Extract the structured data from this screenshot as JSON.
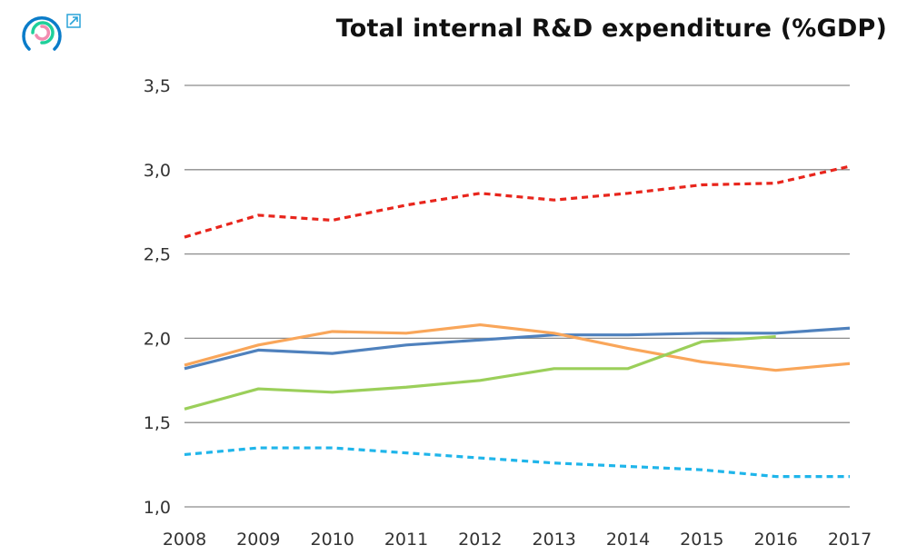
{
  "chart_data": {
    "type": "line",
    "title": "Total internal R&D expenditure (%GDP)",
    "x": [
      2008,
      2009,
      2010,
      2011,
      2012,
      2013,
      2014,
      2015,
      2016,
      2017
    ],
    "x_tick_labels": [
      "2008",
      "2009",
      "2010",
      "2011",
      "2012",
      "2013",
      "2014",
      "2015",
      "2016",
      "2017"
    ],
    "y_tick_labels": [
      "1,0",
      "1,5",
      "2,0",
      "2,5",
      "3,0",
      "3,5"
    ],
    "y_ticks": [
      1.0,
      1.5,
      2.0,
      2.5,
      3.0,
      3.5
    ],
    "ylim": [
      1.0,
      3.5
    ],
    "grid": "horizontal",
    "series": [
      {
        "color": "#e8251c",
        "dash": true,
        "values": [
          2.6,
          2.73,
          2.7,
          2.79,
          2.86,
          2.82,
          2.86,
          2.91,
          2.92,
          3.02
        ]
      },
      {
        "color": "#4f81bd",
        "dash": false,
        "values": [
          1.82,
          1.93,
          1.91,
          1.96,
          1.99,
          2.02,
          2.02,
          2.03,
          2.03,
          2.06
        ]
      },
      {
        "color": "#f9a65a",
        "dash": false,
        "values": [
          1.84,
          1.96,
          2.04,
          2.03,
          2.08,
          2.03,
          1.94,
          1.86,
          1.81,
          1.85
        ]
      },
      {
        "color": "#9bcf5a",
        "dash": false,
        "values": [
          1.58,
          1.7,
          1.68,
          1.71,
          1.75,
          1.82,
          1.82,
          1.98,
          2.01,
          null
        ]
      },
      {
        "color": "#1fb5ea",
        "dash": true,
        "values": [
          1.31,
          1.35,
          1.35,
          1.32,
          1.29,
          1.26,
          1.24,
          1.22,
          1.18,
          1.18
        ]
      }
    ]
  },
  "logo": {
    "icon": "concentric-arcs-logo",
    "colors": [
      "#0a7cc9",
      "#1fcf9a",
      "#f28cb0"
    ]
  },
  "external_link": {
    "icon": "external-link-icon",
    "color": "#2aa4d9"
  }
}
